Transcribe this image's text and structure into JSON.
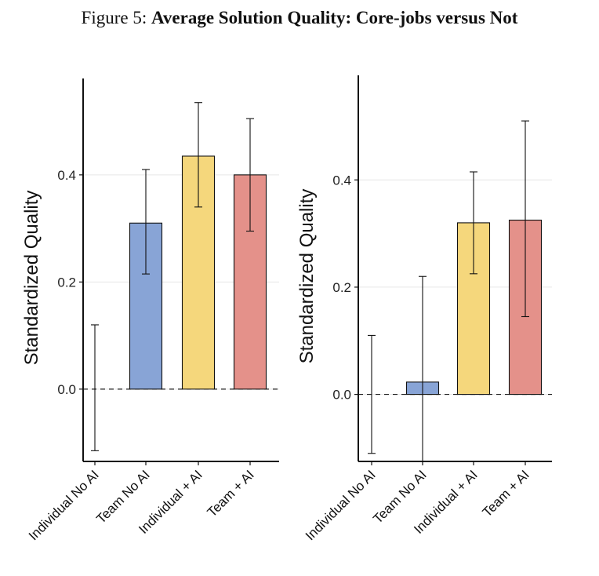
{
  "caption": {
    "lead": "Figure 5:",
    "title": "Average Solution Quality: Core-jobs versus Not"
  },
  "colors": {
    "Individual No AI": "#ffffff",
    "Team No AI": "#88a4d6",
    "Individual + AI": "#f5d77c",
    "Team + AI": "#e4918a",
    "grid": "#e6e6e6",
    "axis": "#111111"
  },
  "chart_data": [
    {
      "type": "bar",
      "title": "",
      "xlabel": "",
      "ylabel": "Standardized Quality",
      "categories": [
        "Individual No AI",
        "Team No AI",
        "Individual + AI",
        "Team + AI"
      ],
      "values": [
        0.0,
        0.31,
        0.435,
        0.4
      ],
      "error_low": [
        -0.115,
        0.215,
        0.34,
        0.295
      ],
      "error_high": [
        0.12,
        0.41,
        0.535,
        0.505
      ],
      "reference_line": 0.0,
      "yticks": [
        0.0,
        0.2,
        0.4
      ],
      "ytick_labels": [
        "0.0",
        "0.2",
        "0.4"
      ],
      "ylim": [
        -0.135,
        0.58
      ],
      "grid": true
    },
    {
      "type": "bar",
      "title": "",
      "xlabel": "",
      "ylabel": "Standardized Quality",
      "categories": [
        "Individual No AI",
        "Team No AI",
        "Individual + AI",
        "Team + AI"
      ],
      "values": [
        0.0,
        0.023,
        0.32,
        0.325
      ],
      "error_low": [
        -0.11,
        -0.125,
        0.225,
        0.145
      ],
      "error_high": [
        0.11,
        0.22,
        0.415,
        0.51
      ],
      "reference_line": 0.0,
      "yticks": [
        0.0,
        0.2,
        0.4
      ],
      "ytick_labels": [
        "0.0",
        "0.2",
        "0.4"
      ],
      "ylim": [
        -0.125,
        0.595
      ],
      "grid": true
    }
  ]
}
